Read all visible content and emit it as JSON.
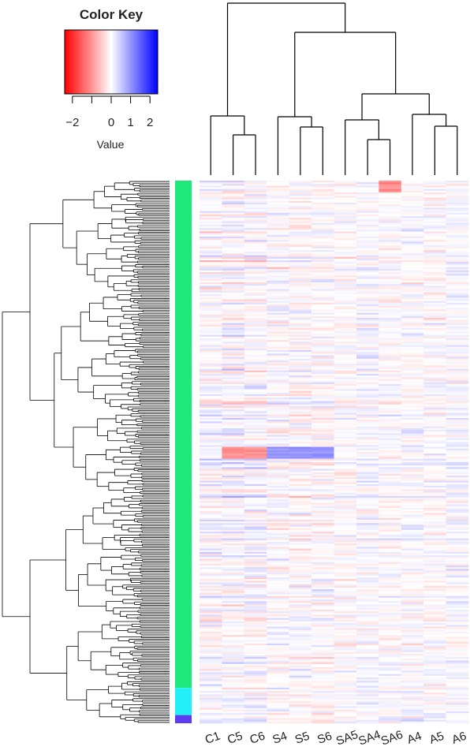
{
  "chart_data": {
    "type": "heatmap",
    "title": "",
    "color_key": {
      "title": "Color Key",
      "label": "Value",
      "ticks": [
        "−2",
        "0",
        "1",
        "2"
      ],
      "tick_values": [
        -2,
        0,
        1,
        2
      ],
      "range": [
        -2.4,
        2.4
      ],
      "colors": {
        "low": "#ff0000",
        "mid": "#ffffff",
        "high": "#0000ff"
      }
    },
    "columns": [
      "C1",
      "C5",
      "C6",
      "S4",
      "S5",
      "S6",
      "SA5",
      "SA4",
      "SA6",
      "A4",
      "A5",
      "A6"
    ],
    "column_dendrogram": [
      [
        0,
        1,
        2,
        3,
        4,
        5,
        6,
        7,
        8,
        9,
        10,
        11
      ]
    ],
    "row_clusters": [
      {
        "color": "#1ee87a",
        "fraction": 0.935
      },
      {
        "color": "#22f0f8",
        "fraction": 0.05
      },
      {
        "color": "#5b3cf0",
        "fraction": 0.015
      }
    ],
    "row_count": 320,
    "value_range": [
      -1.5,
      1.5
    ],
    "band_highlights": [
      {
        "row_start": 0.49,
        "row_end": 0.51,
        "columns": [
          "C5",
          "C6"
        ],
        "value": -1.2
      },
      {
        "row_start": 0.49,
        "row_end": 0.51,
        "columns": [
          "S4",
          "S5",
          "S6"
        ],
        "value": 1.2
      },
      {
        "row_start": 0.0,
        "row_end": 0.02,
        "columns": [
          "SA6"
        ],
        "value": -1.3
      }
    ]
  }
}
